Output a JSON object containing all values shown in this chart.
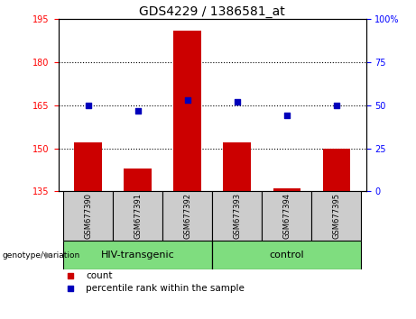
{
  "title": "GDS4229 / 1386581_at",
  "samples": [
    "GSM677390",
    "GSM677391",
    "GSM677392",
    "GSM677393",
    "GSM677394",
    "GSM677395"
  ],
  "bar_values": [
    152,
    143,
    191,
    152,
    136,
    150
  ],
  "percentile_values": [
    50,
    47,
    53,
    52,
    44,
    50
  ],
  "bar_color": "#cc0000",
  "dot_color": "#0000bb",
  "ylim_left": [
    135,
    195
  ],
  "ylim_right": [
    0,
    100
  ],
  "yticks_left": [
    135,
    150,
    165,
    180,
    195
  ],
  "yticks_right": [
    0,
    25,
    50,
    75,
    100
  ],
  "ytick_labels_right": [
    "0",
    "25",
    "50",
    "75",
    "100%"
  ],
  "grid_vals": [
    150,
    165,
    180
  ],
  "groups": [
    {
      "label": "HIV-transgenic",
      "indices": [
        0,
        1,
        2
      ],
      "color": "#7fdd7f"
    },
    {
      "label": "control",
      "indices": [
        3,
        4,
        5
      ],
      "color": "#7fdd7f"
    }
  ],
  "group_label_prefix": "genotype/variation",
  "legend_count_label": "count",
  "legend_percentile_label": "percentile rank within the sample",
  "bar_width": 0.55,
  "sample_box_color": "#cccccc",
  "background_color": "#ffffff",
  "title_fontsize": 10,
  "tick_fontsize": 7,
  "sample_fontsize": 6,
  "group_fontsize": 8,
  "legend_fontsize": 7.5
}
